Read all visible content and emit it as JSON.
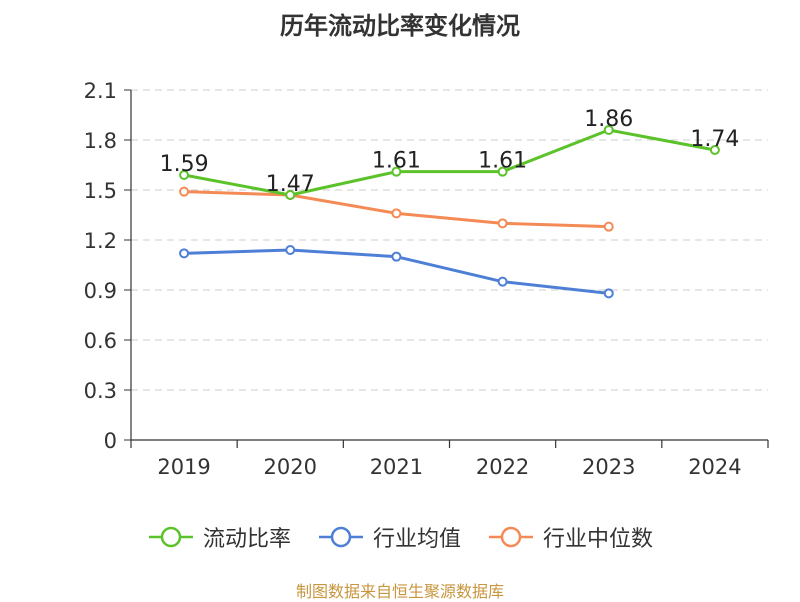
{
  "title": "历年流动比率变化情况",
  "source": "制图数据来自恒生聚源数据库",
  "chart_data": {
    "type": "line",
    "categories": [
      "2019",
      "2020",
      "2021",
      "2022",
      "2023",
      "2024"
    ],
    "ylim": [
      0,
      2.1
    ],
    "yticks": [
      "0",
      "0.3",
      "0.6",
      "0.9",
      "1.2",
      "1.5",
      "1.8",
      "2.1"
    ],
    "grid": true,
    "legend_position": "bottom",
    "series": [
      {
        "name": "流动比率",
        "color": "#5cc22a",
        "values": [
          1.59,
          1.47,
          1.61,
          1.61,
          1.86,
          1.74
        ],
        "labels": [
          "1.59",
          "1.47",
          "1.61",
          "1.61",
          "1.86",
          "1.74"
        ],
        "show_labels": true
      },
      {
        "name": "行业均值",
        "color": "#4e7fd6",
        "values": [
          1.12,
          1.14,
          1.1,
          0.95,
          0.88,
          null
        ],
        "show_labels": false
      },
      {
        "name": "行业中位数",
        "color": "#f48b56",
        "values": [
          1.49,
          1.47,
          1.36,
          1.3,
          1.28,
          null
        ],
        "show_labels": false
      }
    ]
  }
}
